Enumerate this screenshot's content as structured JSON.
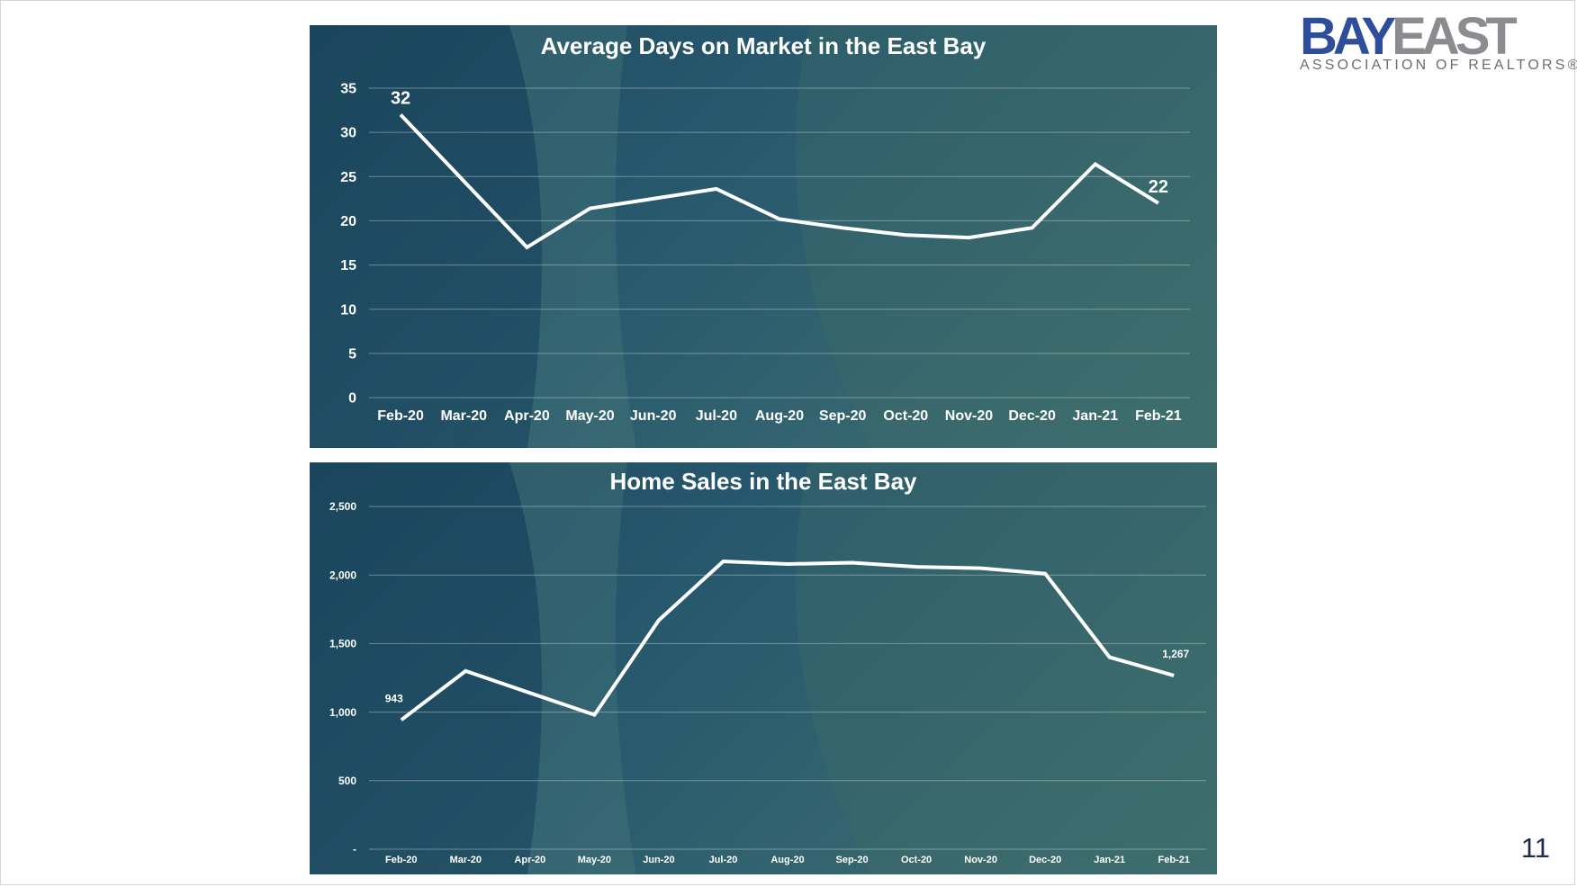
{
  "logo": {
    "brand_part1": "BAY",
    "brand_part2": "EAST",
    "subtitle": "ASSOCIATION OF REALTORS®"
  },
  "page_number": "11",
  "chart_data": [
    {
      "type": "line",
      "title": "Average Days on Market in the East Bay",
      "categories": [
        "Feb-20",
        "Mar-20",
        "Apr-20",
        "May-20",
        "Jun-20",
        "Jul-20",
        "Aug-20",
        "Sep-20",
        "Oct-20",
        "Nov-20",
        "Dec-20",
        "Jan-21",
        "Feb-21"
      ],
      "series": [
        {
          "values": [
            32,
            24.5,
            17,
            21.4,
            22.5,
            23.6,
            20.2,
            19.2,
            18.4,
            18.1,
            19.2,
            26.4,
            22
          ]
        }
      ],
      "ylim": [
        0,
        35
      ],
      "yticks": [
        0,
        5,
        10,
        15,
        20,
        25,
        30,
        35
      ],
      "ytick_labels": [
        "0",
        "5",
        "10",
        "15",
        "20",
        "25",
        "30",
        "35"
      ],
      "data_labels": [
        {
          "index": 0,
          "text": "32"
        },
        {
          "index": 12,
          "text": "22"
        }
      ],
      "grid": true,
      "line_color": "#ffffff"
    },
    {
      "type": "line",
      "title": "Home Sales in the East Bay",
      "categories": [
        "Feb-20",
        "Mar-20",
        "Apr-20",
        "May-20",
        "Jun-20",
        "Jul-20",
        "Aug-20",
        "Sep-20",
        "Oct-20",
        "Nov-20",
        "Dec-20",
        "Jan-21",
        "Feb-21"
      ],
      "series": [
        {
          "values": [
            943,
            1300,
            1140,
            980,
            1670,
            2100,
            2080,
            2090,
            2060,
            2050,
            2010,
            1400,
            1267
          ]
        }
      ],
      "ylim": [
        0,
        2500
      ],
      "yticks": [
        0,
        500,
        1000,
        1500,
        2000,
        2500
      ],
      "ytick_labels": [
        "-",
        "500",
        "1,000",
        "1,500",
        "2,000",
        "2,500"
      ],
      "data_labels": [
        {
          "index": 0,
          "text": "943"
        },
        {
          "index": 12,
          "text": "1,267"
        }
      ],
      "grid": true,
      "line_color": "#ffffff"
    }
  ]
}
